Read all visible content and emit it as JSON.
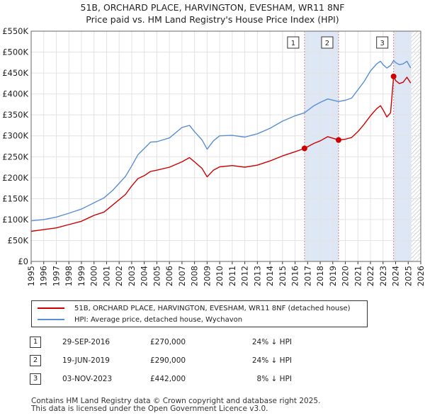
{
  "header": {
    "title": "51B, ORCHARD PLACE, HARVINGTON, EVESHAM, WR11 8NF",
    "subtitle": "Price paid vs. HM Land Registry's House Price Index (HPI)"
  },
  "legend": {
    "property_label": "51B, ORCHARD PLACE, HARVINGTON, EVESHAM, WR11 8NF (detached house)",
    "hpi_label": "HPI: Average price, detached house, Wychavon"
  },
  "transactions": [
    {
      "num": "1",
      "date": "29-SEP-2016",
      "price": "£270,000",
      "hpi": "24% ↓ HPI"
    },
    {
      "num": "2",
      "date": "19-JUN-2019",
      "price": "£290,000",
      "hpi": "24% ↓ HPI"
    },
    {
      "num": "3",
      "date": "03-NOV-2023",
      "price": "£442,000",
      "hpi": "8% ↓ HPI"
    }
  ],
  "footer": {
    "line1": "Contains HM Land Registry data © Crown copyright and database right 2025.",
    "line2": "This data is licensed under the Open Government Licence v3.0."
  },
  "chart_data": {
    "type": "line",
    "x_range": [
      1995,
      2026
    ],
    "ylim": [
      0,
      550000
    ],
    "y_ticks": [
      {
        "value": 0,
        "label": "£0"
      },
      {
        "value": 50000,
        "label": "£50K"
      },
      {
        "value": 100000,
        "label": "£100K"
      },
      {
        "value": 150000,
        "label": "£150K"
      },
      {
        "value": 200000,
        "label": "£200K"
      },
      {
        "value": 250000,
        "label": "£250K"
      },
      {
        "value": 300000,
        "label": "£300K"
      },
      {
        "value": 350000,
        "label": "£350K"
      },
      {
        "value": 400000,
        "label": "£400K"
      },
      {
        "value": 450000,
        "label": "£450K"
      },
      {
        "value": 500000,
        "label": "£500K"
      },
      {
        "value": 550000,
        "label": "£550K"
      }
    ],
    "x_ticks": [
      "1995",
      "1996",
      "1997",
      "1998",
      "1999",
      "2000",
      "2001",
      "2002",
      "2003",
      "2004",
      "2005",
      "2006",
      "2007",
      "2008",
      "2009",
      "2010",
      "2011",
      "2012",
      "2013",
      "2014",
      "2015",
      "2016",
      "2017",
      "2018",
      "2019",
      "2020",
      "2021",
      "2022",
      "2023",
      "2024",
      "2025",
      "2026"
    ],
    "grid": true,
    "legend_position": "below",
    "colors": {
      "property": "#cc0000",
      "hpi": "#5b8fd1",
      "shade": "#dde7f5",
      "marker_line": "#e08080",
      "hatch": "#aaaaaa"
    },
    "series": [
      {
        "name": "51B, ORCHARD PLACE, HARVINGTON, EVESHAM, WR11 8NF (detached house)",
        "key": "property",
        "points": [
          [
            1995.0,
            72000
          ],
          [
            1996.0,
            76000
          ],
          [
            1997.0,
            80000
          ],
          [
            1998.0,
            88000
          ],
          [
            1999.0,
            96000
          ],
          [
            2000.0,
            110000
          ],
          [
            2000.8,
            118000
          ],
          [
            2001.5,
            135000
          ],
          [
            2002.5,
            160000
          ],
          [
            2003.0,
            180000
          ],
          [
            2003.5,
            198000
          ],
          [
            2004.0,
            205000
          ],
          [
            2004.5,
            215000
          ],
          [
            2005.0,
            218000
          ],
          [
            2006.0,
            225000
          ],
          [
            2007.0,
            238000
          ],
          [
            2007.6,
            248000
          ],
          [
            2008.0,
            238000
          ],
          [
            2008.6,
            222000
          ],
          [
            2009.0,
            202000
          ],
          [
            2009.5,
            218000
          ],
          [
            2010.0,
            226000
          ],
          [
            2011.0,
            229000
          ],
          [
            2012.0,
            225000
          ],
          [
            2013.0,
            230000
          ],
          [
            2014.0,
            240000
          ],
          [
            2015.0,
            252000
          ],
          [
            2016.0,
            262000
          ],
          [
            2016.75,
            270000
          ],
          [
            2017.5,
            282000
          ],
          [
            2018.0,
            288000
          ],
          [
            2018.6,
            298000
          ],
          [
            2019.46,
            290000
          ],
          [
            2020.0,
            292000
          ],
          [
            2020.5,
            296000
          ],
          [
            2021.0,
            310000
          ],
          [
            2021.5,
            328000
          ],
          [
            2022.0,
            348000
          ],
          [
            2022.5,
            365000
          ],
          [
            2022.8,
            372000
          ],
          [
            2023.0,
            362000
          ],
          [
            2023.3,
            345000
          ],
          [
            2023.6,
            355000
          ],
          [
            2023.84,
            442000
          ],
          [
            2024.0,
            432000
          ],
          [
            2024.3,
            425000
          ],
          [
            2024.6,
            428000
          ],
          [
            2024.9,
            440000
          ],
          [
            2025.2,
            426000
          ]
        ]
      },
      {
        "name": "HPI: Average price, detached house, Wychavon",
        "key": "hpi",
        "points": [
          [
            1995.0,
            97000
          ],
          [
            1996.0,
            100000
          ],
          [
            1997.0,
            106000
          ],
          [
            1998.0,
            115000
          ],
          [
            1999.0,
            125000
          ],
          [
            2000.0,
            140000
          ],
          [
            2000.8,
            152000
          ],
          [
            2001.5,
            170000
          ],
          [
            2002.5,
            203000
          ],
          [
            2003.0,
            228000
          ],
          [
            2003.5,
            255000
          ],
          [
            2004.0,
            270000
          ],
          [
            2004.5,
            285000
          ],
          [
            2005.0,
            286000
          ],
          [
            2006.0,
            295000
          ],
          [
            2007.0,
            320000
          ],
          [
            2007.6,
            325000
          ],
          [
            2008.0,
            310000
          ],
          [
            2008.6,
            290000
          ],
          [
            2009.0,
            268000
          ],
          [
            2009.5,
            288000
          ],
          [
            2010.0,
            300000
          ],
          [
            2011.0,
            301000
          ],
          [
            2012.0,
            297000
          ],
          [
            2013.0,
            305000
          ],
          [
            2014.0,
            318000
          ],
          [
            2015.0,
            335000
          ],
          [
            2016.0,
            348000
          ],
          [
            2016.75,
            355000
          ],
          [
            2017.5,
            372000
          ],
          [
            2018.0,
            380000
          ],
          [
            2018.6,
            388000
          ],
          [
            2019.46,
            382000
          ],
          [
            2020.0,
            385000
          ],
          [
            2020.5,
            390000
          ],
          [
            2021.0,
            410000
          ],
          [
            2021.5,
            430000
          ],
          [
            2022.0,
            455000
          ],
          [
            2022.5,
            472000
          ],
          [
            2022.8,
            478000
          ],
          [
            2023.0,
            470000
          ],
          [
            2023.3,
            462000
          ],
          [
            2023.6,
            468000
          ],
          [
            2023.84,
            480000
          ],
          [
            2024.0,
            475000
          ],
          [
            2024.3,
            470000
          ],
          [
            2024.6,
            472000
          ],
          [
            2024.9,
            478000
          ],
          [
            2025.2,
            462000
          ]
        ]
      }
    ],
    "sales": [
      {
        "label": "1",
        "x": 2016.75,
        "y": 270000
      },
      {
        "label": "2",
        "x": 2019.46,
        "y": 290000
      },
      {
        "label": "3",
        "x": 2023.84,
        "y": 442000
      }
    ],
    "future_from": 2025.25
  }
}
